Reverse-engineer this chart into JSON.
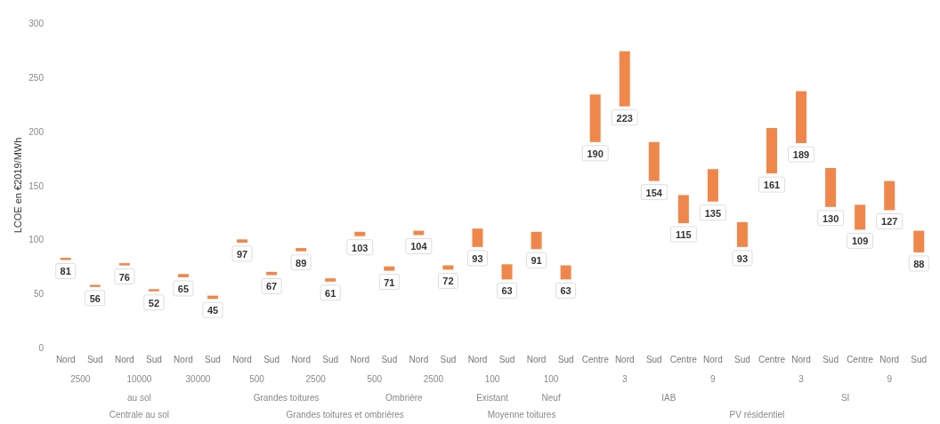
{
  "chart_data": {
    "type": "bar",
    "ylabel": "LCOE en €2019/MWh",
    "categories": [
      "Nord",
      "Sud",
      "Nord",
      "Sud",
      "Nord",
      "Sud",
      "Nord",
      "Sud",
      "Nord",
      "Sud",
      "Nord",
      "Sud",
      "Nord",
      "Sud",
      "Nord",
      "Sud",
      "Nord",
      "Sud",
      "Centre",
      "Nord",
      "Sud",
      "Centre",
      "Nord",
      "Sud",
      "Centre",
      "Nord",
      "Sud",
      "Centre",
      "Nord",
      "Sud"
    ],
    "base": [
      81,
      56,
      76,
      52,
      65,
      45,
      97,
      67,
      89,
      61,
      103,
      71,
      104,
      72,
      93,
      63,
      91,
      63,
      190,
      223,
      154,
      115,
      135,
      93,
      161,
      189,
      130,
      109,
      127,
      88
    ],
    "values": [
      2,
      2,
      2,
      2,
      3,
      3,
      3,
      3,
      3,
      3,
      4,
      4,
      4,
      4,
      17,
      14,
      16,
      13,
      44,
      51,
      36,
      26,
      30,
      23,
      42,
      48,
      36,
      23,
      27,
      20
    ],
    "color": "#f0874a",
    "ylim": [
      0,
      300
    ],
    "yticks": [
      0,
      50,
      100,
      150,
      200,
      250,
      300
    ],
    "annotations": [
      {
        "text": "81",
        "y": 81
      },
      {
        "text": "56",
        "y": 56
      },
      {
        "text": "76",
        "y": 76
      },
      {
        "text": "52",
        "y": 52
      },
      {
        "text": "65",
        "y": 65
      },
      {
        "text": "45",
        "y": 45
      },
      {
        "text": "97",
        "y": 97
      },
      {
        "text": "67",
        "y": 67
      },
      {
        "text": "89",
        "y": 89
      },
      {
        "text": "61",
        "y": 61
      },
      {
        "text": "103",
        "y": 103
      },
      {
        "text": "71",
        "y": 71
      },
      {
        "text": "104",
        "y": 104
      },
      {
        "text": "72",
        "y": 72
      },
      {
        "text": "93",
        "y": 93
      },
      {
        "text": "63",
        "y": 63
      },
      {
        "text": "91",
        "y": 91
      },
      {
        "text": "63",
        "y": 63
      },
      {
        "text": "190",
        "y": 190
      },
      {
        "text": "223",
        "y": 223
      },
      {
        "text": "154",
        "y": 154
      },
      {
        "text": "115",
        "y": 115
      },
      {
        "text": "135",
        "y": 135
      },
      {
        "text": "93",
        "y": 93
      },
      {
        "text": "161",
        "y": 161
      },
      {
        "text": "189",
        "y": 189
      },
      {
        "text": "130",
        "y": 130
      },
      {
        "text": "109",
        "y": 109
      },
      {
        "text": "127",
        "y": 127
      },
      {
        "text": "88",
        "y": 88
      },
      "2500",
      "10000",
      "30000",
      "500",
      "2500",
      "500",
      "2500",
      "100",
      "100",
      "3",
      "9",
      "3",
      "9",
      "au sol",
      "Grandes toitures",
      "Ombrière",
      "Existant",
      "Neuf",
      "IAB",
      "SI",
      "Centrale au sol",
      "Grandes toitures et ombrières",
      "Moyenne toitures",
      "PV résidentiel"
    ]
  }
}
